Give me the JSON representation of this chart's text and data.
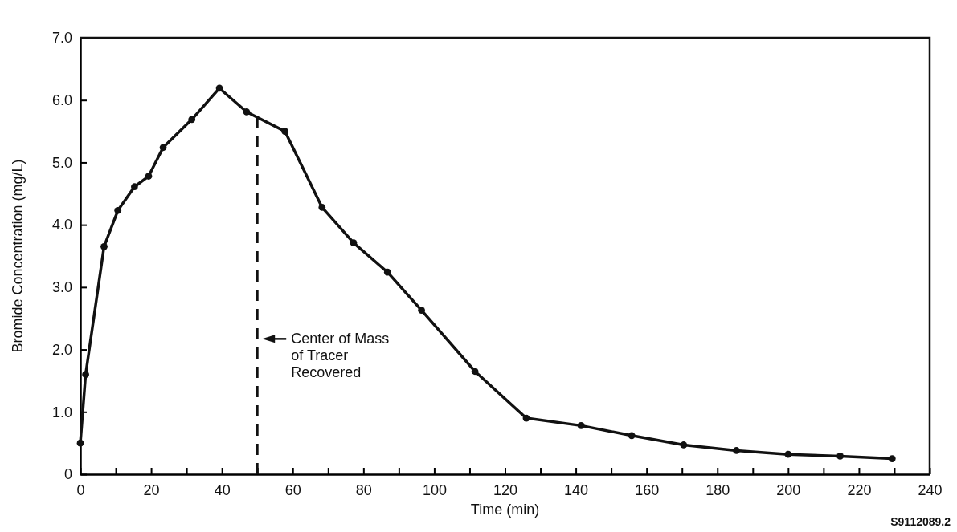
{
  "chart_data": {
    "type": "line",
    "xlabel": "Time (min)",
    "ylabel": "Bromide Concentration (mg/L)",
    "x": [
      0,
      1.5,
      6.7,
      10.6,
      15.3,
      19.3,
      23.4,
      31.5,
      39.3,
      47,
      57.8,
      68.3,
      77.2,
      86.8,
      96.4,
      111.5,
      126,
      141.5,
      155.8,
      170.5,
      185.4,
      200,
      214.7,
      229.4
    ],
    "series": [
      {
        "color": "#111111",
        "values": [
          0.5,
          1.6,
          3.65,
          4.23,
          4.61,
          4.78,
          5.24,
          5.69,
          6.19,
          5.81,
          5.5,
          4.28,
          3.71,
          3.24,
          2.63,
          1.65,
          0.9,
          0.78,
          0.62,
          0.47,
          0.38,
          0.32,
          0.29,
          0.25
        ]
      }
    ],
    "xlim": [
      0,
      240
    ],
    "xticks": [
      0,
      {
        "value": 10,
        "label": null
      },
      20,
      {
        "value": 30,
        "label": null
      },
      40,
      {
        "value": 50,
        "label": null
      },
      60,
      {
        "value": 70,
        "label": null
      },
      80,
      {
        "value": 90,
        "label": null
      },
      100,
      {
        "value": 110,
        "label": null
      },
      120,
      {
        "value": 130,
        "label": null
      },
      140,
      {
        "value": 150,
        "label": null
      },
      160,
      {
        "value": 170,
        "label": null
      },
      180,
      {
        "value": 190,
        "label": null
      },
      200,
      {
        "value": 210,
        "label": null
      },
      220,
      {
        "value": 230,
        "label": null
      },
      240
    ],
    "ylim": [
      0,
      7
    ],
    "yticks": [
      0,
      {
        "value": 1,
        "label": "1.0"
      },
      {
        "value": 2,
        "label": "2.0"
      },
      {
        "value": 3,
        "label": "3.0"
      },
      {
        "value": 4,
        "label": "4.0"
      },
      {
        "value": 5,
        "label": "5.0"
      },
      {
        "value": 6,
        "label": "6.0"
      },
      {
        "value": 7,
        "label": "7.0"
      }
    ],
    "ref_lines": [
      {
        "axis": "x",
        "value": 50,
        "label": "Center of Mass\nof Tracer\nRecovered",
        "line_style": "dashed"
      }
    ],
    "annotations": [
      "S9112089.2"
    ],
    "marker": "circle",
    "line_style": "solid",
    "grid": false
  }
}
